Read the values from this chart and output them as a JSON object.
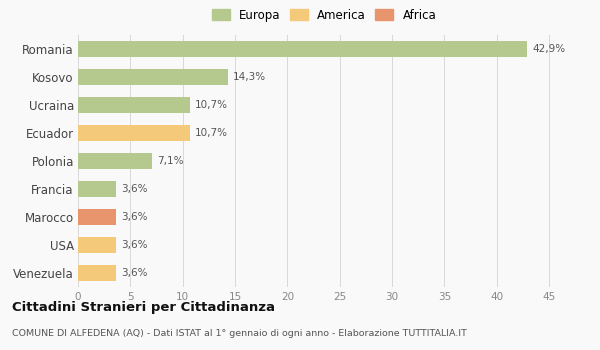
{
  "categories": [
    "Romania",
    "Kosovo",
    "Ucraina",
    "Ecuador",
    "Polonia",
    "Francia",
    "Marocco",
    "USA",
    "Venezuela"
  ],
  "values": [
    42.9,
    14.3,
    10.7,
    10.7,
    7.1,
    3.6,
    3.6,
    3.6,
    3.6
  ],
  "labels": [
    "42,9%",
    "14,3%",
    "10,7%",
    "10,7%",
    "7,1%",
    "3,6%",
    "3,6%",
    "3,6%",
    "3,6%"
  ],
  "colors": [
    "#b5c98e",
    "#b5c98e",
    "#b5c98e",
    "#f5c97a",
    "#b5c98e",
    "#b5c98e",
    "#e8956d",
    "#f5c97a",
    "#f5c97a"
  ],
  "legend": [
    {
      "label": "Europa",
      "color": "#b5c98e"
    },
    {
      "label": "America",
      "color": "#f5c97a"
    },
    {
      "label": "Africa",
      "color": "#e8956d"
    }
  ],
  "xlim": [
    0,
    47
  ],
  "xticks": [
    0,
    5,
    10,
    15,
    20,
    25,
    30,
    35,
    40,
    45
  ],
  "title": "Cittadini Stranieri per Cittadinanza",
  "subtitle": "COMUNE DI ALFEDENA (AQ) - Dati ISTAT al 1° gennaio di ogni anno - Elaborazione TUTTITALIA.IT",
  "background_color": "#f9f9f9",
  "grid_color": "#d8d8d8",
  "bar_height": 0.6
}
